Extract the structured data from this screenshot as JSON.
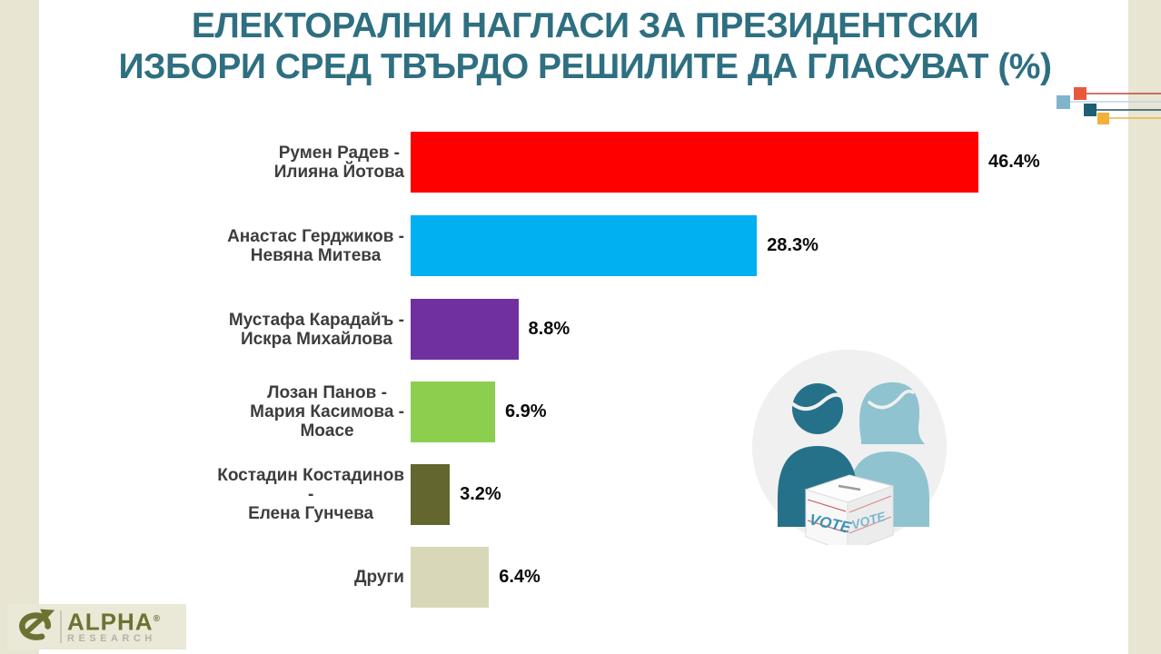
{
  "title": {
    "line1": "ЕЛЕКТОРАЛНИ НАГЛАСИ ЗА ПРЕЗИДЕНТСКИ",
    "line2": "ИЗБОРИ СРЕД ТВЪРДО РЕШИЛИТЕ ДА ГЛАСУВАТ (%)"
  },
  "chart_data": {
    "type": "bar",
    "orientation": "horizontal",
    "title": "ЕЛЕКТОРАЛНИ НАГЛАСИ ЗА ПРЕЗИДЕНТСКИ ИЗБОРИ СРЕД ТВЪРДО РЕШИЛИТЕ ДА ГЛАСУВАТ (%)",
    "categories": [
      "Румен Радев - Илияна Йотова",
      "Анастас Герджиков - Невяна Митева",
      "Мустафа Карадайъ - Искра Михайлова",
      "Лозан Панов - Мария Касимова - Моасе",
      "Костадин Костадинов - Елена Гунчева",
      "Други"
    ],
    "values": [
      46.4,
      28.3,
      8.8,
      6.9,
      3.2,
      6.4
    ],
    "labels": [
      "46.4%",
      "28.3%",
      "8.8%",
      "6.9%",
      "3.2%",
      "6.4%"
    ],
    "colors": [
      "#fe0000",
      "#00b0f0",
      "#7030a0",
      "#8ccf4f",
      "#63672f",
      "#d8d7b8"
    ],
    "xlim": [
      0,
      50
    ],
    "grid": false,
    "legend": false,
    "value_labels_position": "end-of-bar"
  },
  "rows": [
    {
      "lines": [
        "Румен Радев -",
        "Илияна Йотова"
      ],
      "value": "46.4%"
    },
    {
      "lines": [
        "Анастас Герджиков -",
        "Невяна Митева"
      ],
      "value": "28.3%"
    },
    {
      "lines": [
        "Мустафа Карадайъ -",
        "Искра Михайлова"
      ],
      "value": "8.8%"
    },
    {
      "lines": [
        "Лозан Панов -",
        "Мария Касимова -",
        "Моасе"
      ],
      "value": "6.9%"
    },
    {
      "lines": [
        "Костадин Костадинов",
        "-",
        "Елена Гунчева"
      ],
      "value": "3.2%"
    },
    {
      "lines": [
        "Други"
      ],
      "value": "6.4%"
    }
  ],
  "decor": {
    "squares": [
      {
        "color": "#e8593c",
        "line": "#b94a3e"
      },
      {
        "color": "#7fb4cc",
        "line": "#bdd8e4"
      },
      {
        "color": "#1f5f73",
        "line": "#1f4e5f"
      },
      {
        "color": "#f2b138",
        "line": "#e8b54a"
      }
    ]
  },
  "illustration": {
    "vote_text": "VOTE",
    "circle_color": "#f0f0f1",
    "man_color": "#25718a",
    "woman_color": "#8fc3cf"
  },
  "logo": {
    "name": "ALPHA",
    "reg": "®",
    "sub": "RESEARCH",
    "brand_color": "#6d7233"
  },
  "frame_color": "#e8e5d3",
  "title_color": "#2e6f81"
}
